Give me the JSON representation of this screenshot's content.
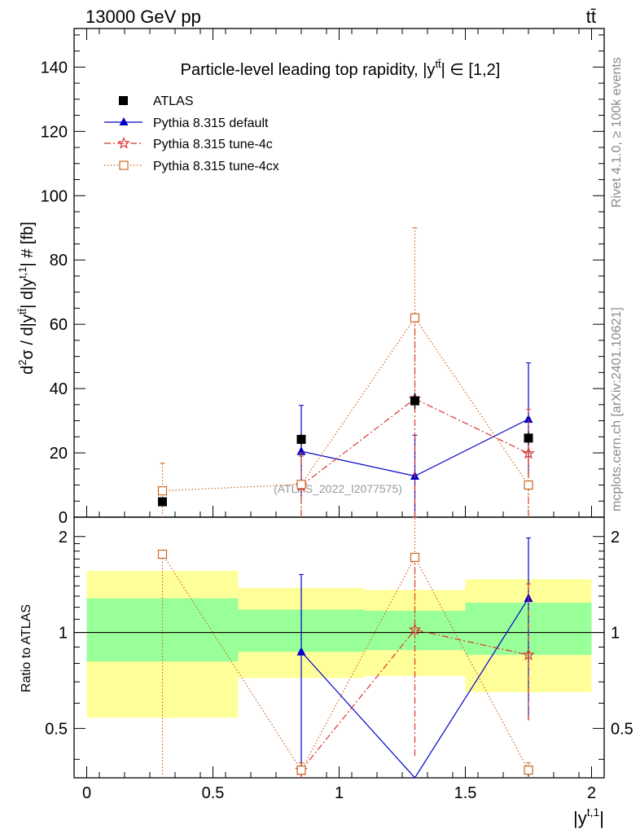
{
  "header": {
    "energy_label": "13000 GeV pp",
    "process_label": "tt̄"
  },
  "side_labels": {
    "rivet": "Rivet 4.1.0, ≥ 100k events",
    "mcplots": "mcplots.cern.ch [arXiv:2401.10621]"
  },
  "colors": {
    "atlas": "#000000",
    "default": "#0000cc",
    "tune4c": "#dd3333",
    "tune4cx": "#cc6622",
    "band_inner": "#99ff99",
    "band_outer": "#ffff99"
  },
  "chart_data": [
    {
      "type": "scatter",
      "panel": "main",
      "title": "Particle-level leading top rapidity, |y^tt̄| ∈ [1,2]",
      "title_parts": {
        "prefix": "Particle-level leading top rapidity, |y",
        "sup": "tt̄",
        "suffix": "| ∈ [1,2]"
      },
      "ylabel": "d²σ / d|y^tt̄| d|y^t,1| # [fb]",
      "ylabel_parts": {
        "a": "d",
        "a_sup": "2",
        "b": "σ / d|y",
        "b_sup": "tt̄",
        "c": "| d|y",
        "c_sup": "t,1",
        "d": "| # [fb]"
      },
      "xlim": [
        -0.05,
        2.05
      ],
      "ylim": [
        0,
        152
      ],
      "yticks": [
        0,
        20,
        40,
        60,
        80,
        100,
        120,
        140
      ],
      "watermark": "(ATLAS_2022_I2077575)",
      "legend": [
        "ATLAS",
        "Pythia 8.315 default",
        "Pythia 8.315 tune-4c",
        "Pythia 8.315 tune-4cx"
      ],
      "series": [
        {
          "name": "ATLAS",
          "marker": "square",
          "x": [
            0.3,
            0.85,
            1.3,
            1.75
          ],
          "y": [
            4.8,
            24.2,
            36.2,
            24.6
          ],
          "yerr": [
            0.8,
            2.0,
            2.5,
            2.0
          ]
        },
        {
          "name": "Pythia 8.315 default",
          "marker": "triangle",
          "x": [
            0.85,
            1.3,
            1.75
          ],
          "y": [
            20.5,
            12.8,
            30.5
          ],
          "ylo": [
            6.0,
            0,
            12.8
          ],
          "yhi": [
            34.8,
            25.5,
            48.0
          ]
        },
        {
          "name": "Pythia 8.315 tune-4c",
          "marker": "star",
          "x": [
            0.85,
            1.3,
            1.75
          ],
          "y": [
            9.8,
            36.8,
            19.8
          ],
          "ylo": [
            0,
            0,
            0
          ],
          "yhi": [
            19.0,
            62.0,
            33.5
          ]
        },
        {
          "name": "Pythia 8.315 tune-4cx",
          "marker": "open-square",
          "x": [
            0.3,
            0.85,
            1.3,
            1.75
          ],
          "y": [
            8.2,
            10.2,
            62.0,
            10.0
          ],
          "ylo": [
            0,
            0,
            34.0,
            0
          ],
          "yhi": [
            16.8,
            20.0,
            90.0,
            20.0
          ]
        }
      ]
    },
    {
      "type": "scatter",
      "panel": "ratio",
      "ylabel": "Ratio to ATLAS",
      "xlabel": "|y^t,1|",
      "xlabel_parts": {
        "a": "|y",
        "sup": "t,1",
        "b": "|"
      },
      "xlim": [
        -0.05,
        2.05
      ],
      "ylim": [
        0.35,
        2.3
      ],
      "yticks": [
        0.5,
        1,
        2
      ],
      "ytick_labels": [
        "0.5",
        "1",
        "2"
      ],
      "xticks": [
        0,
        0.5,
        1,
        1.5,
        2
      ],
      "xtick_labels": [
        "0",
        "0.5",
        "1",
        "1.5",
        "2"
      ],
      "bands": [
        {
          "x0": 0.0,
          "x1": 0.6,
          "inner": [
            0.81,
            1.28
          ],
          "outer": [
            0.54,
            1.56
          ]
        },
        {
          "x0": 0.6,
          "x1": 1.1,
          "inner": [
            0.87,
            1.18
          ],
          "outer": [
            0.72,
            1.38
          ]
        },
        {
          "x0": 1.1,
          "x1": 1.5,
          "inner": [
            0.88,
            1.17
          ],
          "outer": [
            0.73,
            1.36
          ]
        },
        {
          "x0": 1.5,
          "x1": 2.0,
          "inner": [
            0.85,
            1.24
          ],
          "outer": [
            0.65,
            1.47
          ]
        }
      ],
      "series": [
        {
          "name": "Pythia 8.315 default",
          "marker": "triangle",
          "x": [
            0.85,
            1.3,
            1.75
          ],
          "y": [
            0.87,
            0.35,
            1.28
          ],
          "ylo": [
            0.35,
            0.35,
            0.53
          ],
          "yhi": [
            1.52,
            0.35,
            1.98
          ],
          "off_low": [
            false,
            true,
            false
          ]
        },
        {
          "name": "Pythia 8.315 tune-4c",
          "marker": "star",
          "x": [
            0.85,
            1.3,
            1.75
          ],
          "y": [
            0.37,
            1.02,
            0.85
          ],
          "ylo": [
            0.35,
            0.41,
            0.53
          ],
          "yhi": [
            0.39,
            1.72,
            1.42
          ]
        },
        {
          "name": "Pythia 8.315 tune-4cx",
          "marker": "open-square",
          "x": [
            0.3,
            0.85,
            1.3,
            1.75
          ],
          "y": [
            1.76,
            0.37,
            1.72,
            0.37
          ],
          "ylo": [
            0.35,
            0.35,
            0.97,
            0.35
          ],
          "yhi": [
            1.76,
            0.39,
            2.3,
            0.39
          ]
        }
      ]
    }
  ]
}
